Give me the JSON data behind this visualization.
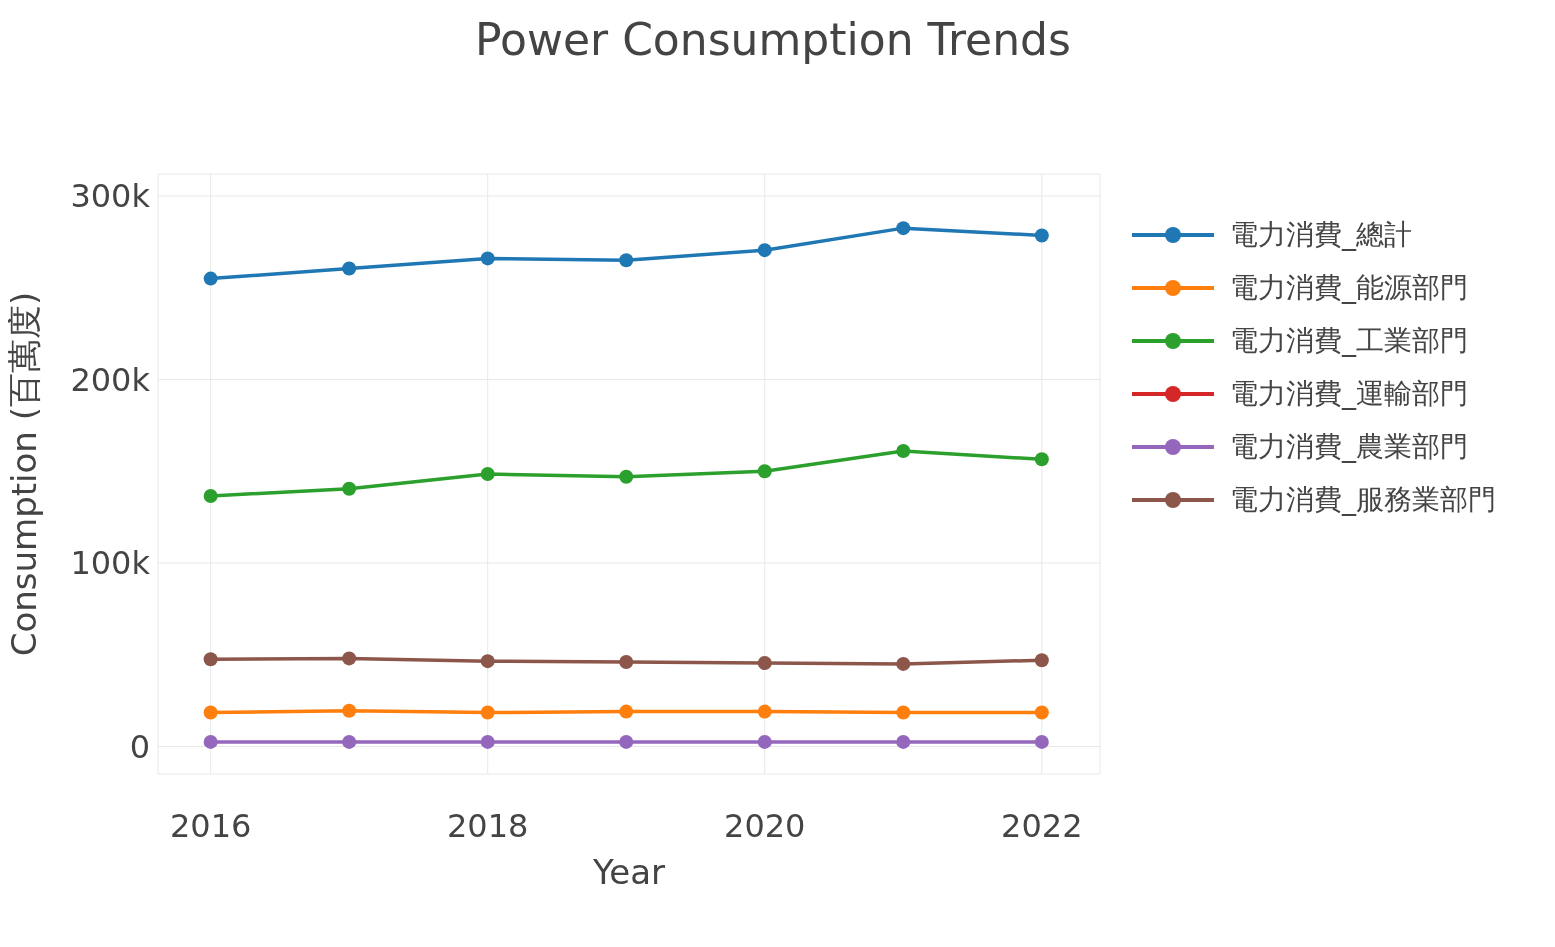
{
  "chart_data": {
    "type": "line",
    "title": "Power Consumption Trends",
    "xlabel": "Year",
    "ylabel": "Consumption (百萬度)",
    "x": [
      2016,
      2017,
      2018,
      2019,
      2020,
      2021,
      2022
    ],
    "series": [
      {
        "name": "電力消費_總計",
        "color": "#1f77b4",
        "values": [
          255000,
          260500,
          266000,
          265000,
          270500,
          282500,
          278500
        ]
      },
      {
        "name": "電力消費_能源部門",
        "color": "#ff7f0e",
        "values": [
          18500,
          19500,
          18500,
          19000,
          19000,
          18500,
          18500
        ]
      },
      {
        "name": "電力消費_工業部門",
        "color": "#2ca02c",
        "values": [
          136500,
          140500,
          148500,
          147000,
          150000,
          161000,
          156500
        ]
      },
      {
        "name": "電力消費_運輸部門",
        "color": "#d62728",
        "values": [
          null,
          null,
          null,
          null,
          null,
          null,
          null
        ]
      },
      {
        "name": "電力消費_農業部門",
        "color": "#9467bd",
        "values": [
          2500,
          2500,
          2500,
          2500,
          2500,
          2500,
          2500
        ]
      },
      {
        "name": "電力消費_服務業部門",
        "color": "#8c564b",
        "values": [
          47500,
          48000,
          46500,
          46000,
          45500,
          45000,
          47000
        ]
      }
    ],
    "xlim": [
      2015.62,
      2022.42
    ],
    "xticks": [
      2016,
      2018,
      2020,
      2022
    ],
    "ylim": [
      -15000,
      312000
    ],
    "yticks": [
      {
        "value": 0,
        "label": "0"
      },
      {
        "value": 100000,
        "label": "100k"
      },
      {
        "value": 200000,
        "label": "200k"
      },
      {
        "value": 300000,
        "label": "300k"
      }
    ],
    "grid": true,
    "legend": "top right",
    "marker": "circle",
    "line_style": "solid"
  }
}
